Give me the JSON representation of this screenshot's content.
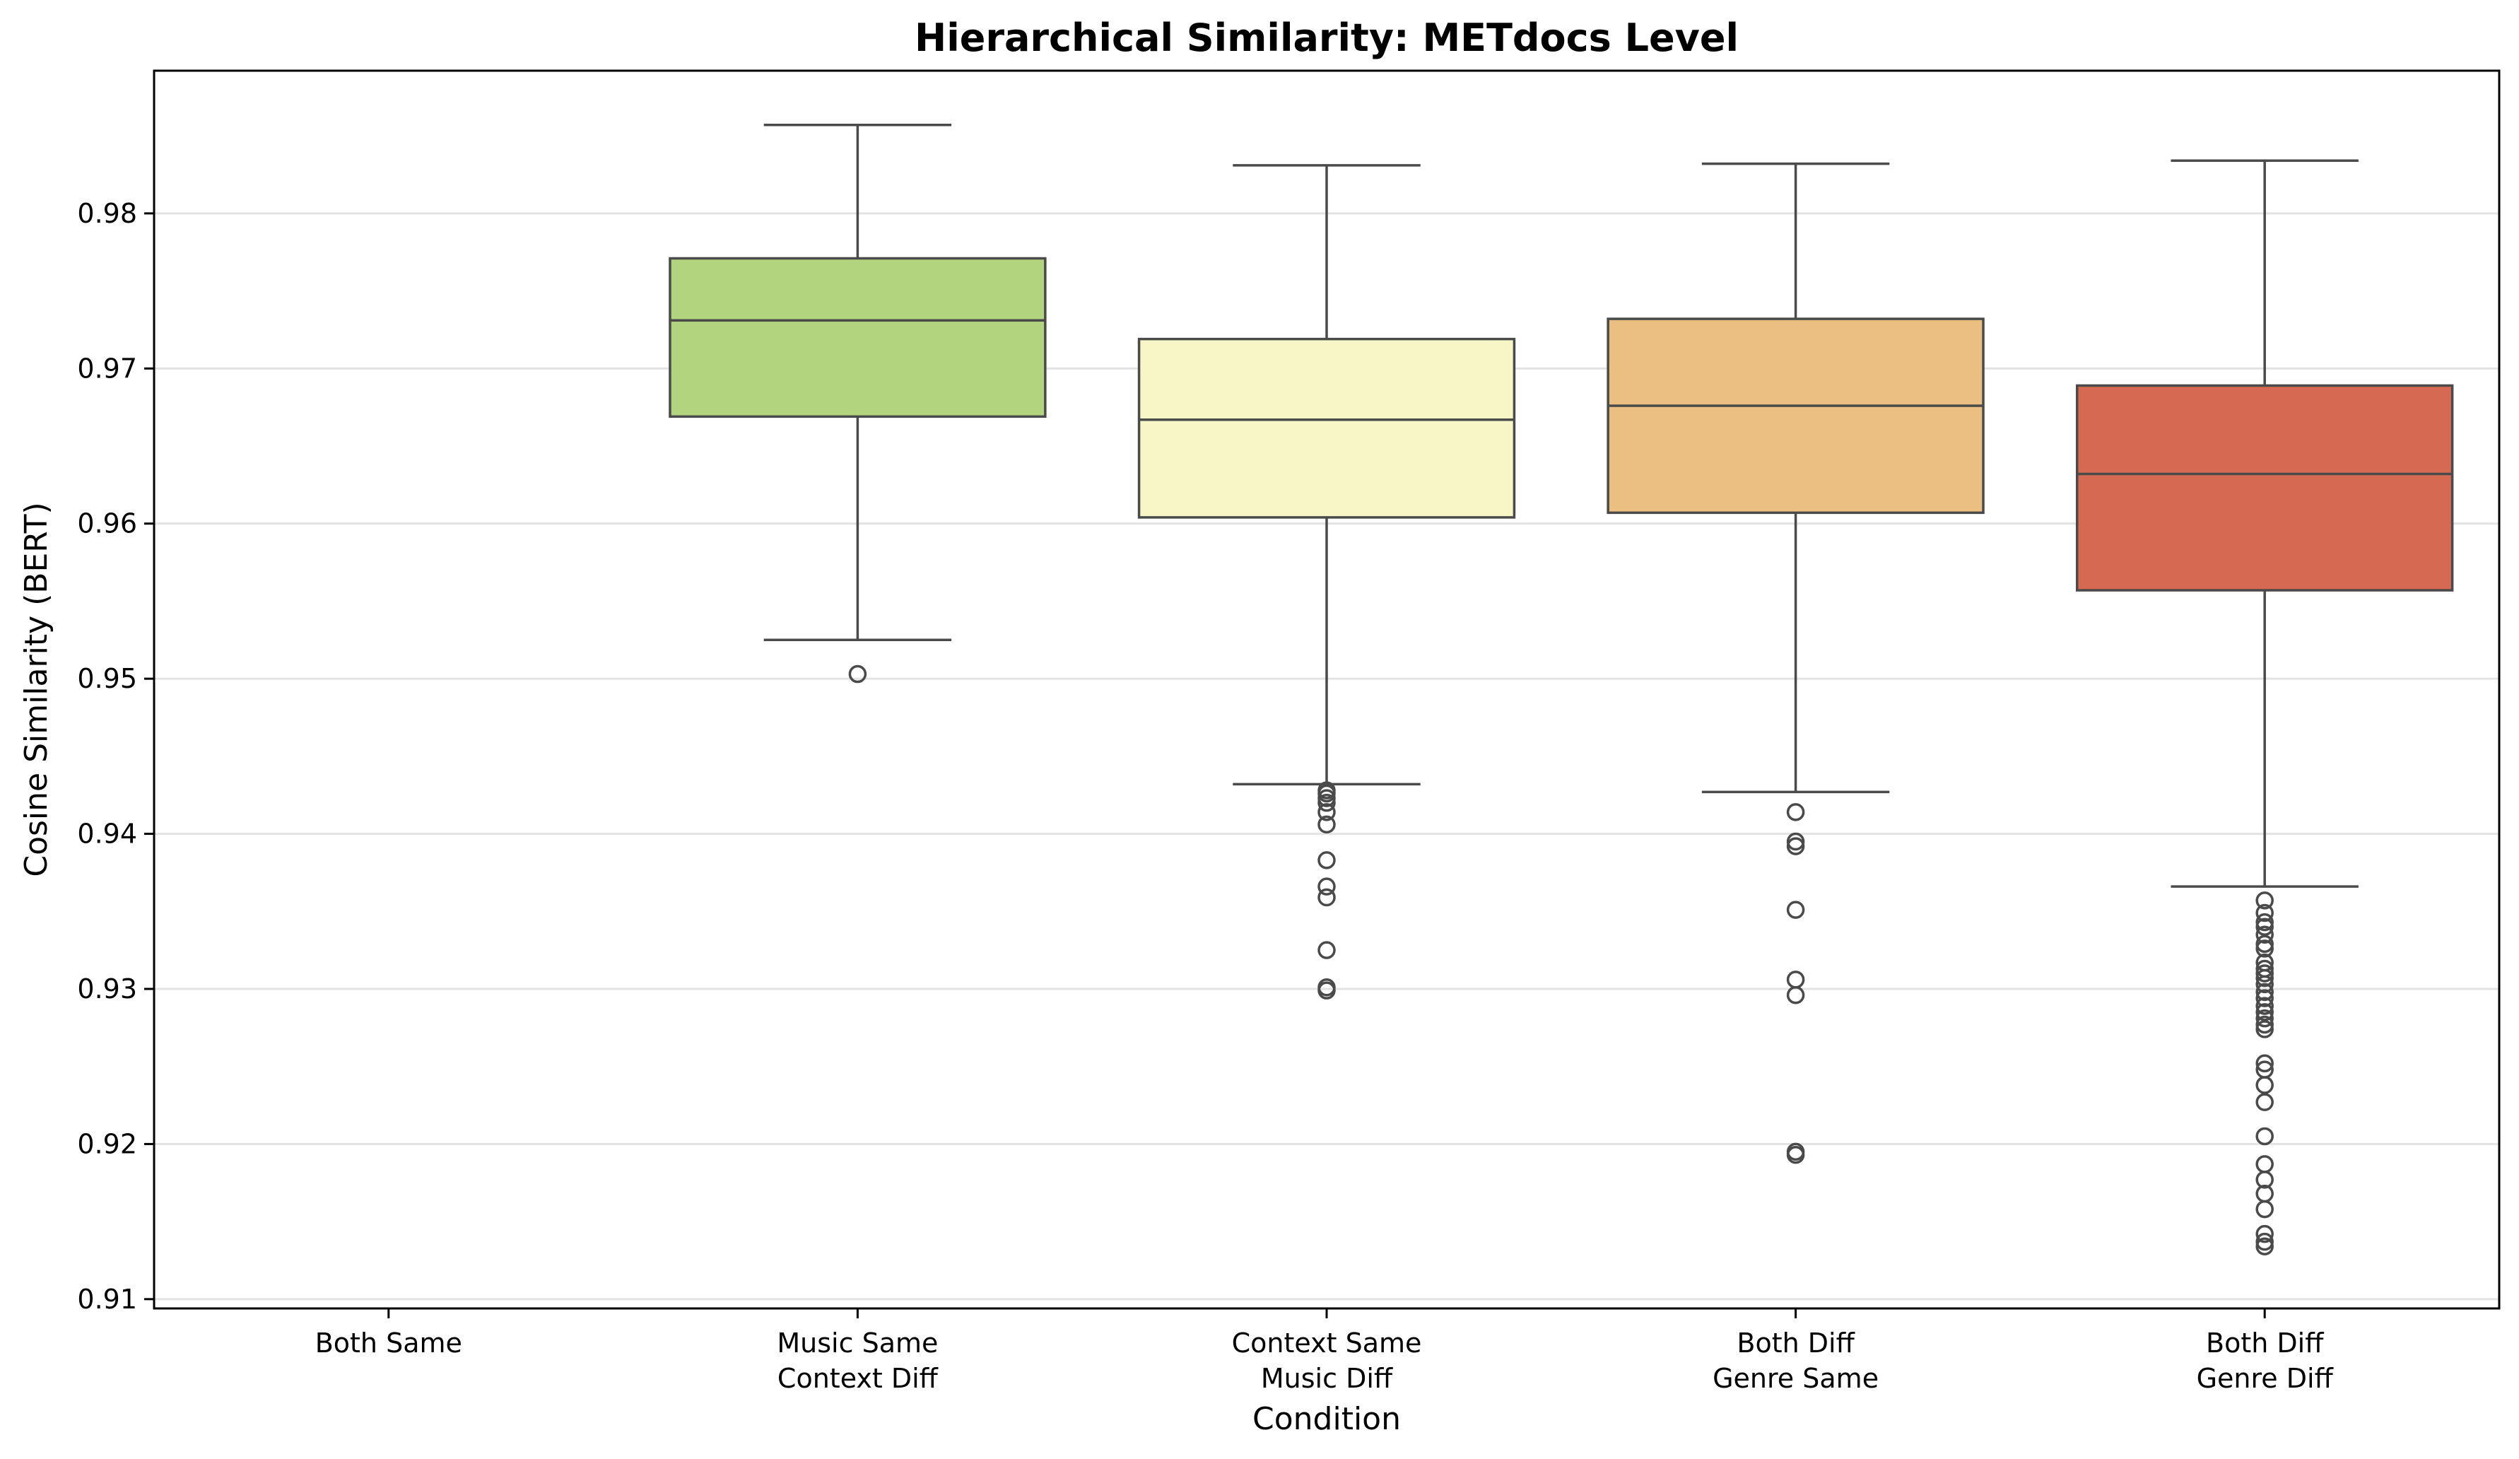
{
  "chart_data": {
    "type": "box",
    "title": "Hierarchical Similarity: METdocs Level",
    "xlabel": "Condition",
    "ylabel": "Cosine Similarity (BERT)",
    "ylim": [
      0.9094,
      0.9892
    ],
    "yticks": [
      0.91,
      0.92,
      0.93,
      0.94,
      0.95,
      0.96,
      0.97,
      0.98
    ],
    "ytick_labels": [
      "0.91",
      "0.92",
      "0.93",
      "0.94",
      "0.95",
      "0.96",
      "0.97",
      "0.98"
    ],
    "grid": "horizontal",
    "categories": [
      {
        "lines": [
          "Both Same"
        ],
        "box": null
      },
      {
        "lines": [
          "Music Same",
          "Context Diff"
        ],
        "color": "#b3d47f",
        "box": {
          "whisker_low": 0.9525,
          "q1": 0.9669,
          "median": 0.9731,
          "q3": 0.9771,
          "whisker_high": 0.9857
        },
        "outliers": [
          0.9503
        ]
      },
      {
        "lines": [
          "Context Same",
          "Music Diff"
        ],
        "color": "#f7f6c6",
        "box": {
          "whisker_low": 0.9432,
          "q1": 0.9604,
          "median": 0.9667,
          "q3": 0.9719,
          "whisker_high": 0.9831
        },
        "outliers": [
          0.9428,
          0.9426,
          0.9423,
          0.942,
          0.9414,
          0.9406,
          0.9383,
          0.9366,
          0.9359,
          0.9325,
          0.9301,
          0.9299
        ]
      },
      {
        "lines": [
          "Both Diff",
          "Genre Same"
        ],
        "color": "#ebbe81",
        "box": {
          "whisker_low": 0.9427,
          "q1": 0.9607,
          "median": 0.9676,
          "q3": 0.9732,
          "whisker_high": 0.9832
        },
        "outliers": [
          0.9414,
          0.9395,
          0.9392,
          0.9351,
          0.9306,
          0.9296,
          0.9195,
          0.9193
        ]
      },
      {
        "lines": [
          "Both Diff",
          "Genre Diff"
        ],
        "color": "#d56951",
        "box": {
          "whisker_low": 0.9366,
          "q1": 0.9557,
          "median": 0.9632,
          "q3": 0.9689,
          "whisker_high": 0.9834
        },
        "outliers": [
          0.9357,
          0.9349,
          0.9343,
          0.934,
          0.9335,
          0.9329,
          0.9326,
          0.9317,
          0.9313,
          0.931,
          0.9307,
          0.9303,
          0.9298,
          0.9294,
          0.9289,
          0.9285,
          0.9281,
          0.9277,
          0.9274,
          0.9252,
          0.9248,
          0.9238,
          0.9227,
          0.9205,
          0.9187,
          0.9177,
          0.9168,
          0.9158,
          0.9142,
          0.9137,
          0.9134
        ]
      }
    ]
  }
}
